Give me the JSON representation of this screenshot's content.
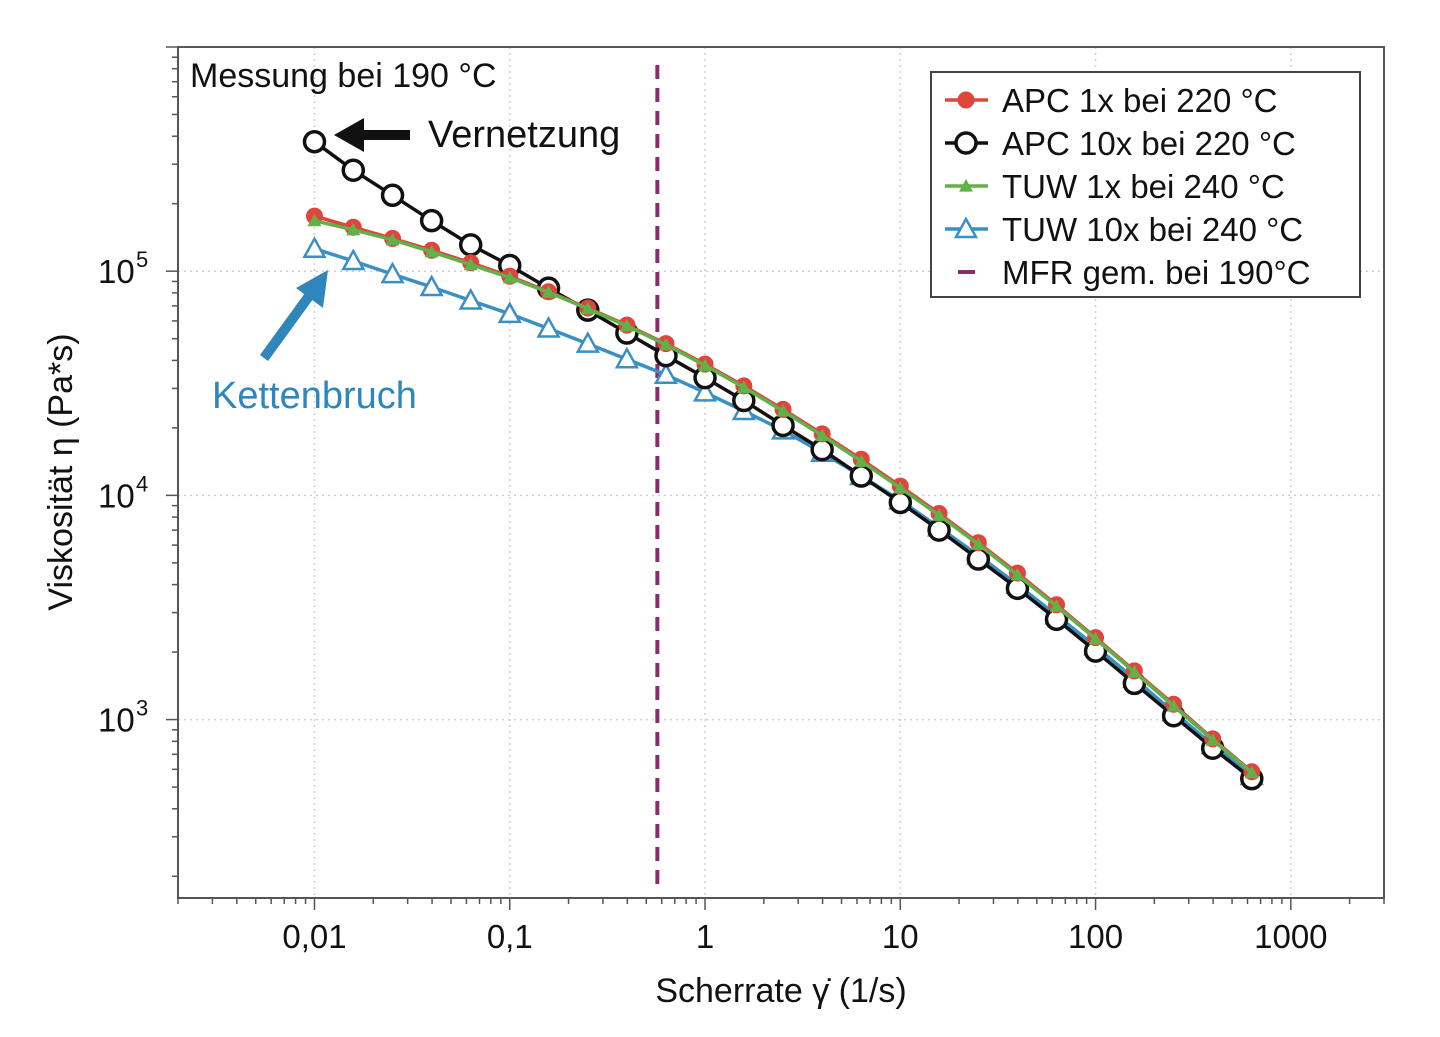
{
  "chart_data": {
    "type": "line",
    "xlabel": "Scherrate γ̇ (1/s)",
    "ylabel": "Viskosität η (Pa*s)",
    "x_scale": "log",
    "y_scale": "log",
    "xlim": [
      0.002,
      3000
    ],
    "ylim": [
      160,
      1000000
    ],
    "x_ticks": [
      {
        "value": 0.01,
        "label": "0,01"
      },
      {
        "value": 0.1,
        "label": "0,1"
      },
      {
        "value": 1,
        "label": "1"
      },
      {
        "value": 10,
        "label": "10"
      },
      {
        "value": 100,
        "label": "100"
      },
      {
        "value": 1000,
        "label": "1000"
      }
    ],
    "y_ticks": [
      {
        "value": 1000,
        "base": "10",
        "exp": "3"
      },
      {
        "value": 10000,
        "base": "10",
        "exp": "4"
      },
      {
        "value": 100000,
        "base": "10",
        "exp": "5"
      }
    ],
    "grid": true,
    "legend_position": "top-right",
    "x": [
      0.01,
      0.0158,
      0.0251,
      0.0398,
      0.0631,
      0.1,
      0.158,
      0.251,
      0.398,
      0.631,
      1,
      1.58,
      2.51,
      3.98,
      6.31,
      10,
      15.8,
      25.1,
      39.8,
      63.1,
      100,
      158,
      251,
      398,
      631
    ],
    "series": [
      {
        "name": "APC 1x bei 220 °C",
        "color": "#e0443b",
        "marker": "filled-circle",
        "values": [
          176000,
          157000,
          140000,
          124000,
          109000,
          95000,
          81000,
          68500,
          57500,
          47500,
          38500,
          30800,
          24200,
          18800,
          14500,
          11000,
          8300,
          6150,
          4500,
          3250,
          2320,
          1650,
          1170,
          820,
          585
        ]
      },
      {
        "name": "APC 10x bei 220 °C",
        "color": "#111111",
        "marker": "open-circle",
        "values": [
          378000,
          282000,
          218000,
          168000,
          131000,
          106000,
          84000,
          67000,
          53000,
          42000,
          33500,
          26500,
          20500,
          16000,
          12200,
          9300,
          7000,
          5200,
          3850,
          2800,
          2020,
          1450,
          1040,
          745,
          545
        ]
      },
      {
        "name": "TUW 1x bei 240 °C",
        "color": "#62b04a",
        "marker": "filled-triangle",
        "values": [
          168000,
          153000,
          138000,
          122000,
          107000,
          93500,
          80500,
          68000,
          57000,
          47000,
          38000,
          30300,
          23800,
          18500,
          14200,
          10800,
          8150,
          6050,
          4420,
          3200,
          2290,
          1630,
          1150,
          810,
          580
        ]
      },
      {
        "name": "TUW 10x bei 240 °C",
        "color": "#3a8fc4",
        "marker": "open-triangle",
        "values": [
          126000,
          111000,
          97000,
          85000,
          74000,
          64500,
          55500,
          47500,
          40500,
          34500,
          28800,
          23800,
          19500,
          15500,
          12200,
          9500,
          7200,
          5400,
          4000,
          2920,
          2120,
          1520,
          1080,
          770,
          560
        ]
      }
    ],
    "vline": {
      "name": "MFR gem. bei 190°C",
      "x": 0.57,
      "color": "#8a2c6b"
    },
    "annotations": {
      "measurement": "Messung bei 190 °C",
      "crosslinking": "Vernetzung",
      "chain_scission": "Kettenbruch"
    },
    "colors": {
      "crosslinking_arrow": "#111111",
      "chain_scission_arrow": "#2f86bb",
      "chain_scission_text": "#2f86bb"
    }
  }
}
